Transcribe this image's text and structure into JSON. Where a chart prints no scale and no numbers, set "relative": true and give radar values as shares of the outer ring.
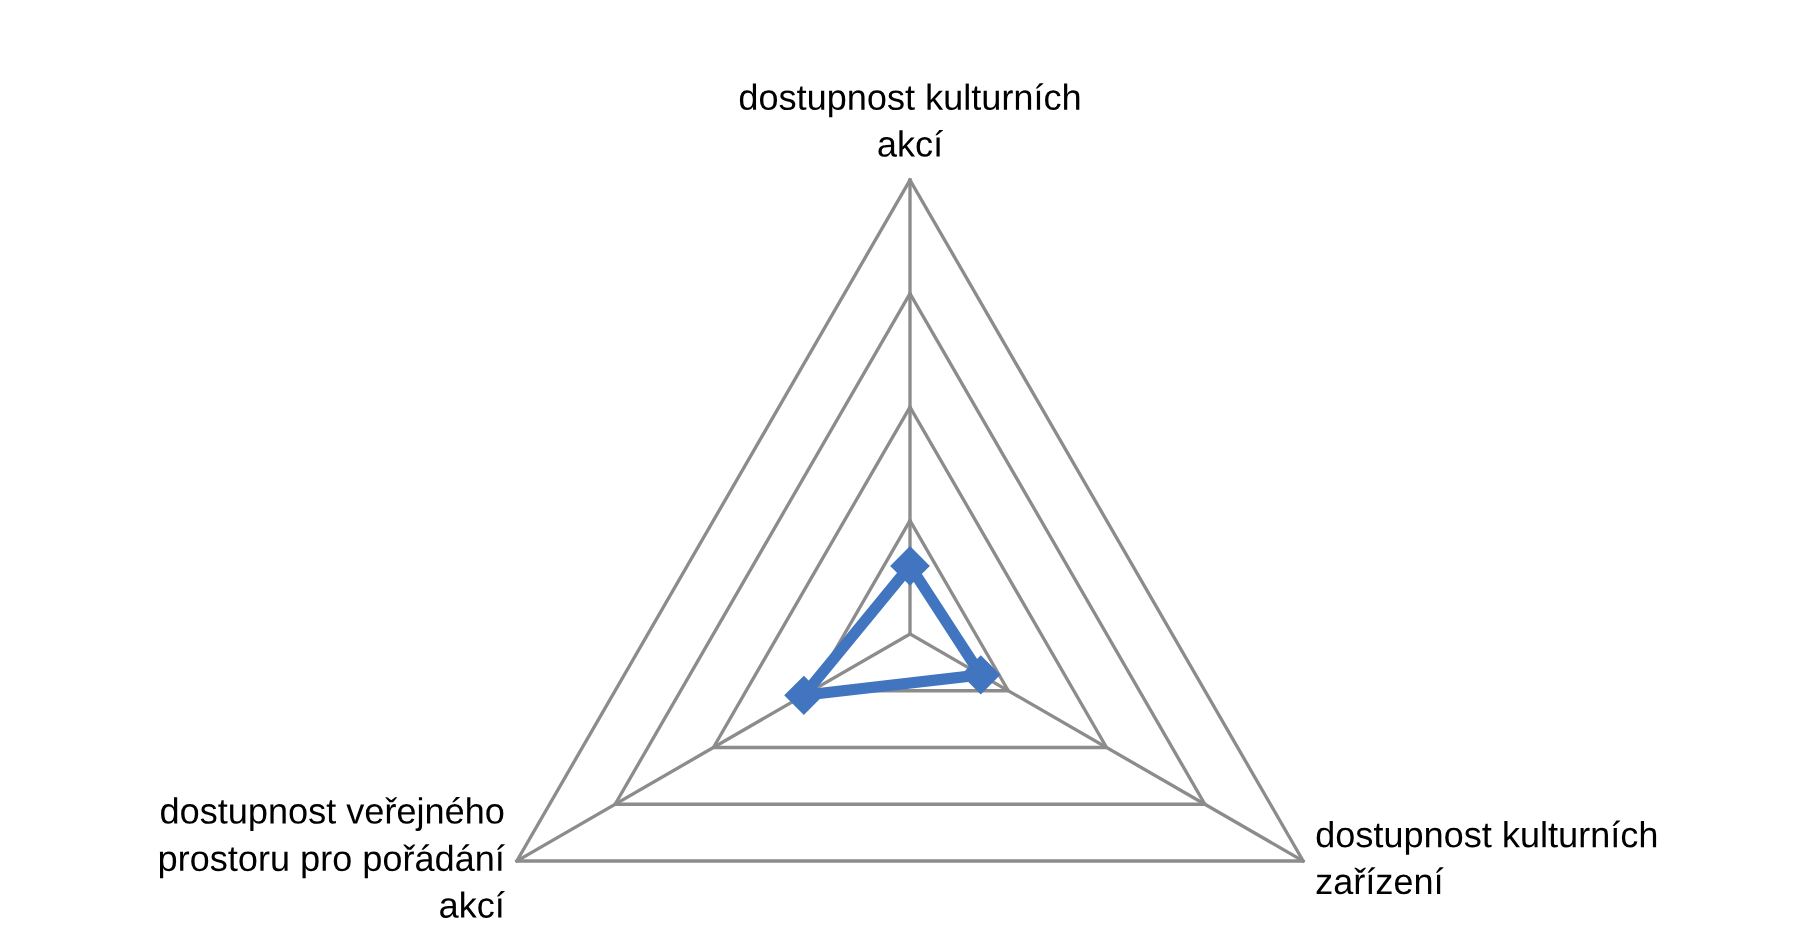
{
  "chart_data": {
    "type": "radar",
    "relative": true,
    "grid": true,
    "marker": "diamond",
    "line_style": "solid",
    "categories": [
      "dostupnost kulturních\nakcí",
      "dostupnost kulturních\nzařízení",
      "dostupnost veřejného\nprostoru pro pořádání\nakcí"
    ],
    "series": [
      {
        "color": "#4275c0",
        "values": [
          0.15,
          0.18,
          0.27
        ]
      }
    ]
  }
}
